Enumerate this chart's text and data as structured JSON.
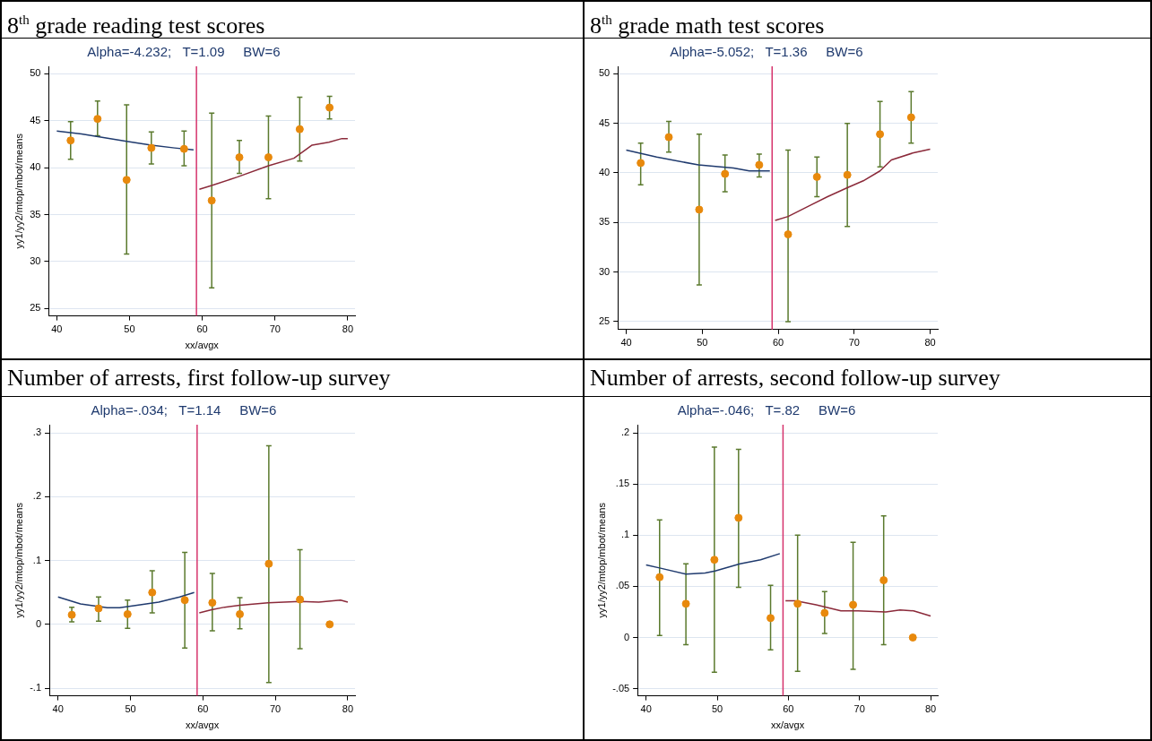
{
  "chart_data": [
    {
      "type": "scatter",
      "title": "8$^{th}$ grade reading test scores",
      "subtitle": "Alpha=-4.232;   T=1.09     BW=6",
      "xlabel": "xx/avgx",
      "ylabel": "yy1/yy2/mtop/mbot/means",
      "xlim": [
        38.9,
        81
      ],
      "xticks": [
        40,
        50,
        60,
        70,
        80
      ],
      "ylim": [
        24.2,
        50.8
      ],
      "yticks": [
        25,
        30,
        35,
        40,
        45,
        50
      ],
      "grid": "y",
      "ref_lines": [
        {
          "axis": "x",
          "value": 59.2,
          "color": "#d6336c"
        }
      ],
      "series": [
        {
          "color": "#e8890c",
          "marker": "circle",
          "x": [
            41.9,
            45.6,
            49.6,
            53.0,
            57.5,
            61.3,
            65.1,
            69.1,
            73.4,
            77.5
          ],
          "values": [
            42.9,
            45.2,
            38.7,
            42.1,
            42.0,
            36.5,
            41.1,
            41.1,
            44.1,
            46.4
          ],
          "errors": [
            [
              40.9,
              44.9
            ],
            [
              43.4,
              47.1
            ],
            [
              30.8,
              46.7
            ],
            [
              40.4,
              43.8
            ],
            [
              40.2,
              43.9
            ],
            [
              27.2,
              45.8
            ],
            [
              39.4,
              42.9
            ],
            [
              36.7,
              45.5
            ],
            [
              40.7,
              47.5
            ],
            [
              45.2,
              47.6
            ]
          ]
        },
        {
          "type": "line",
          "color": "#1f3a6e",
          "marker": "none",
          "x": [
            40,
            43.4,
            49.6,
            53,
            56.2,
            58.8
          ],
          "values": [
            43.9,
            43.6,
            42.8,
            42.4,
            42.1,
            41.9
          ]
        },
        {
          "type": "line",
          "color": "#8b2a3a",
          "marker": "none",
          "x": [
            59.6,
            61.3,
            64.8,
            69.1,
            72.6,
            75.1,
            77.4,
            79.2,
            80
          ],
          "values": [
            37.7,
            38.1,
            39.0,
            40.2,
            41.0,
            42.4,
            42.7,
            43.1,
            43.1
          ]
        }
      ]
    },
    {
      "type": "scatter",
      "title": "8$^{th}$ grade math test scores",
      "subtitle": "Alpha=-5.052;   T=1.36     BW=6",
      "xlim": [
        38.9,
        81
      ],
      "xticks": [
        40,
        50,
        60,
        70,
        80
      ],
      "ylim": [
        24.2,
        50.75
      ],
      "yticks": [
        25,
        30,
        35,
        40,
        45,
        50
      ],
      "grid": "y",
      "ref_lines": [
        {
          "axis": "x",
          "value": 59.2,
          "color": "#d6336c"
        }
      ],
      "series": [
        {
          "color": "#e8890c",
          "marker": "circle",
          "x": [
            41.9,
            45.6,
            49.6,
            53.0,
            57.5,
            61.3,
            65.1,
            69.1,
            73.4,
            77.5
          ],
          "values": [
            41.0,
            43.6,
            36.3,
            39.9,
            40.8,
            33.8,
            39.6,
            39.8,
            43.9,
            45.6
          ],
          "errors": [
            [
              38.8,
              43.0
            ],
            [
              42.1,
              45.2
            ],
            [
              28.7,
              43.9
            ],
            [
              38.1,
              41.8
            ],
            [
              39.6,
              41.9
            ],
            [
              25.0,
              42.3
            ],
            [
              37.6,
              41.6
            ],
            [
              34.6,
              45.0
            ],
            [
              40.6,
              47.2
            ],
            [
              43.0,
              48.2
            ]
          ]
        },
        {
          "type": "line",
          "color": "#1f3a6e",
          "marker": "none",
          "x": [
            40,
            44,
            49.5,
            52.4,
            54.1,
            56.2,
            58.9
          ],
          "values": [
            42.3,
            41.6,
            40.8,
            40.6,
            40.5,
            40.2,
            40.2
          ]
        },
        {
          "type": "line",
          "color": "#8b2a3a",
          "marker": "none",
          "x": [
            59.6,
            61.3,
            64.4,
            66.5,
            69.1,
            71.2,
            73.4,
            74.9,
            77.7,
            80
          ],
          "values": [
            35.2,
            35.6,
            36.8,
            37.6,
            38.5,
            39.2,
            40.2,
            41.3,
            42.0,
            42.4
          ]
        }
      ]
    },
    {
      "type": "scatter",
      "title": "Number of arrests, first follow-up survey",
      "subtitle": "Alpha=-.034;   T=1.14     BW=6",
      "xlabel": "xx/avgx",
      "ylabel": "yy1/yy2/mtop/mbot/means",
      "xlim": [
        38.8,
        81
      ],
      "xticks": [
        40,
        50,
        60,
        70,
        80
      ],
      "ylim": [
        -0.112,
        0.313
      ],
      "yticks": [
        {
          "value": -0.1,
          "label": "-.1"
        },
        0,
        {
          "value": 0.1,
          "label": ".1"
        },
        {
          "value": 0.2,
          "label": ".2"
        },
        {
          "value": 0.3,
          "label": ".3"
        }
      ],
      "grid": "y",
      "ref_lines": [
        {
          "axis": "x",
          "value": 59.2,
          "color": "#d6336c"
        }
      ],
      "series": [
        {
          "color": "#e8890c",
          "marker": "circle",
          "x": [
            41.9,
            45.6,
            49.6,
            53.0,
            57.5,
            61.3,
            65.1,
            69.1,
            73.4,
            77.5
          ],
          "values": [
            0.015,
            0.025,
            0.016,
            0.05,
            0.038,
            0.034,
            0.016,
            0.095,
            0.039,
            0
          ],
          "errors": [
            [
              0.004,
              0.027
            ],
            [
              0.005,
              0.043
            ],
            [
              -0.006,
              0.038
            ],
            [
              0.018,
              0.084
            ],
            [
              -0.037,
              0.113
            ],
            [
              -0.01,
              0.08
            ],
            [
              -0.007,
              0.042
            ],
            [
              -0.091,
              0.28
            ],
            [
              -0.038,
              0.117
            ],
            null
          ]
        },
        {
          "type": "line",
          "color": "#1f3a6e",
          "marker": "none",
          "x": [
            40,
            43.1,
            46.8,
            48.5,
            50.9,
            53.9,
            56.8,
            58.8
          ],
          "values": [
            0.043,
            0.032,
            0.026,
            0.026,
            0.03,
            0.035,
            0.043,
            0.05
          ]
        },
        {
          "type": "line",
          "color": "#8b2a3a",
          "marker": "none",
          "x": [
            59.5,
            61.2,
            63,
            65.1,
            69,
            73.4,
            76,
            79,
            80
          ],
          "values": [
            0.018,
            0.023,
            0.027,
            0.03,
            0.034,
            0.036,
            0.035,
            0.038,
            0.035
          ]
        }
      ]
    },
    {
      "type": "scatter",
      "title": "Number of arrests, second follow-up survey",
      "subtitle": "Alpha=-.046;   T=.82     BW=6",
      "xlabel": "xx/avgx",
      "ylabel": "yy1/yy2/mtop/mbot/means",
      "xlim": [
        38.8,
        81
      ],
      "xticks": [
        40,
        50,
        60,
        70,
        80
      ],
      "ylim": [
        -0.057,
        0.208
      ],
      "yticks": [
        {
          "value": -0.05,
          "label": "-.05"
        },
        0,
        {
          "value": 0.05,
          "label": ".05"
        },
        {
          "value": 0.1,
          "label": ".1"
        },
        {
          "value": 0.15,
          "label": ".15"
        },
        {
          "value": 0.2,
          "label": ".2"
        }
      ],
      "grid": "y",
      "ref_lines": [
        {
          "axis": "x",
          "value": 59.25,
          "color": "#d6336c"
        }
      ],
      "series": [
        {
          "color": "#e8890c",
          "marker": "circle",
          "x": [
            41.9,
            45.6,
            49.6,
            53.0,
            57.5,
            61.3,
            65.1,
            69.1,
            73.4,
            77.5
          ],
          "values": [
            0.059,
            0.033,
            0.076,
            0.117,
            0.019,
            0.033,
            0.024,
            0.032,
            0.056,
            0
          ],
          "errors": [
            [
              0.002,
              0.115
            ],
            [
              -0.007,
              0.072
            ],
            [
              -0.034,
              0.186
            ],
            [
              0.049,
              0.184
            ],
            [
              -0.012,
              0.051
            ],
            [
              -0.033,
              0.1
            ],
            [
              0.004,
              0.045
            ],
            [
              -0.031,
              0.093
            ],
            [
              -0.007,
              0.119
            ],
            null
          ]
        },
        {
          "type": "line",
          "color": "#1f3a6e",
          "marker": "none",
          "x": [
            40,
            41.9,
            45.6,
            48.3,
            49.7,
            53.2,
            56.1,
            58.8
          ],
          "values": [
            0.071,
            0.068,
            0.062,
            0.063,
            0.065,
            0.072,
            0.076,
            0.082
          ]
        },
        {
          "type": "line",
          "color": "#8b2a3a",
          "marker": "none",
          "x": [
            59.6,
            61,
            63.9,
            67.4,
            69.8,
            73.7,
            75.7,
            77.6,
            80
          ],
          "values": [
            0.036,
            0.036,
            0.032,
            0.026,
            0.026,
            0.025,
            0.027,
            0.026,
            0.021
          ]
        }
      ]
    }
  ]
}
